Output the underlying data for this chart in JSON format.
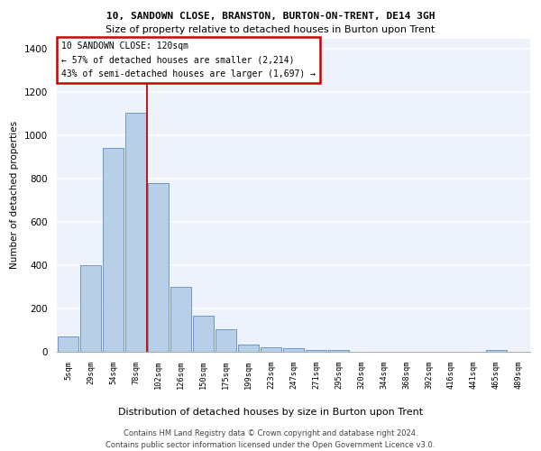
{
  "title1": "10, SANDOWN CLOSE, BRANSTON, BURTON-ON-TRENT, DE14 3GH",
  "title2": "Size of property relative to detached houses in Burton upon Trent",
  "xlabel": "Distribution of detached houses by size in Burton upon Trent",
  "ylabel": "Number of detached properties",
  "footer": "Contains HM Land Registry data © Crown copyright and database right 2024.\nContains public sector information licensed under the Open Government Licence v3.0.",
  "annotation_line1": "10 SANDOWN CLOSE: 120sqm",
  "annotation_line2": "← 57% of detached houses are smaller (2,214)",
  "annotation_line3": "43% of semi-detached houses are larger (1,697) →",
  "bar_color": "#b8cfe8",
  "bar_edge_color": "#5b8dc8",
  "vline_color": "#cc0000",
  "background_color": "#eef2fb",
  "grid_color": "#ffffff",
  "categories": [
    "5sqm",
    "29sqm",
    "54sqm",
    "78sqm",
    "102sqm",
    "126sqm",
    "150sqm",
    "175sqm",
    "199sqm",
    "223sqm",
    "247sqm",
    "271sqm",
    "295sqm",
    "320sqm",
    "344sqm",
    "368sqm",
    "392sqm",
    "416sqm",
    "441sqm",
    "465sqm",
    "489sqm"
  ],
  "values": [
    70,
    400,
    945,
    1105,
    780,
    300,
    168,
    105,
    35,
    20,
    15,
    10,
    10,
    0,
    0,
    0,
    0,
    0,
    0,
    10,
    0
  ],
  "ylim": [
    0,
    1450
  ],
  "yticks": [
    0,
    200,
    400,
    600,
    800,
    1000,
    1200,
    1400
  ],
  "vline_x_index": 3.5
}
